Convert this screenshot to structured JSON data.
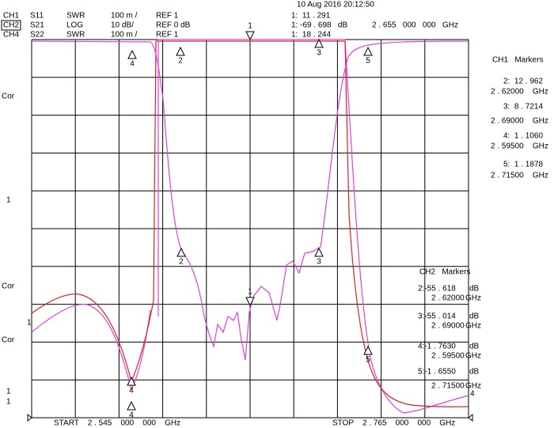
{
  "header": {
    "date": "10 Aug 2016 20:12:50"
  },
  "channels": [
    [
      "CH1",
      "S11",
      "SWR",
      "100 m /",
      "REF 1"
    ],
    [
      "CH2",
      "S21",
      "LOG",
      "10 dB/",
      "REF 0 dB"
    ],
    [
      "CH4",
      "S22",
      "SWR",
      "100 m /",
      "REF 1"
    ]
  ],
  "readout": {
    "lines": [
      "1:  11 . 291",
      "1: -69 . 698   dB",
      "1:  18 . 244"
    ],
    "frequency": "2 . 655   000   000   GHz"
  },
  "ch1_markers": {
    "title": "CH1   Markers",
    "entries": [
      [
        "2:  12 . 962",
        "2 . 62000    GHz"
      ],
      [
        "3:  8 . 7214",
        "2 . 69000    GHz"
      ],
      [
        "4:  1 . 1060",
        "2 . 59500    GHz"
      ],
      [
        "5:  1 . 1878",
        "2 . 71500    GHz"
      ]
    ]
  },
  "ch2_markers": {
    "title": "CH2   Markers",
    "entries": [
      [
        "2:-55 . 618",
        "dB",
        "2 . 62000",
        "GHz"
      ],
      [
        "3:-55 . 014",
        "dB",
        "2 . 69000",
        "GHz"
      ],
      [
        "4:-1 . 7630",
        "dB",
        "2 . 59500",
        "GHz"
      ],
      [
        "5:-1 . 6550",
        "dB",
        "2 . 71500",
        "GHz"
      ]
    ]
  },
  "left_labels": [
    "Cor",
    "1",
    "Cor",
    "1",
    "Cor",
    "1",
    "1"
  ],
  "marker_labels": [
    "4",
    "2",
    "1",
    "3",
    "5",
    "2",
    "3",
    "1",
    "4",
    "5",
    "4",
    "4"
  ],
  "start": "START    2 . 545    000    000    GHz",
  "stop": "STOP    2 . 765    000    000    GHz"
}
